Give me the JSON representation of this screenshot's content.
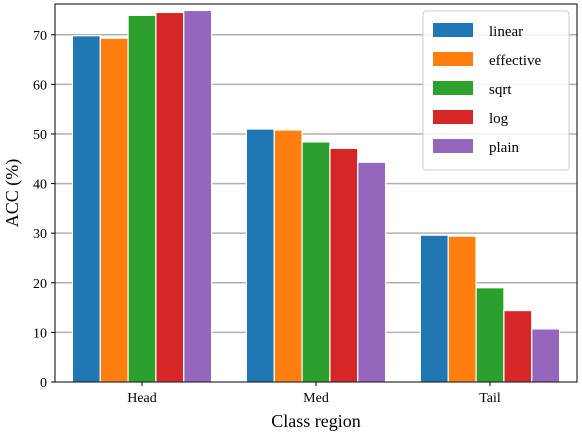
{
  "chart_data": {
    "type": "bar",
    "categories": [
      "Head",
      "Med",
      "Tail"
    ],
    "series": [
      {
        "name": "linear",
        "color": "#1f77b4",
        "values": [
          69.8,
          51.0,
          29.6
        ]
      },
      {
        "name": "effective",
        "color": "#ff7f0e",
        "values": [
          69.3,
          50.8,
          29.4
        ]
      },
      {
        "name": "sqrt",
        "color": "#2ca02c",
        "values": [
          73.9,
          48.4,
          19.0
        ]
      },
      {
        "name": "log",
        "color": "#d62728",
        "values": [
          74.5,
          47.1,
          14.4
        ]
      },
      {
        "name": "plain",
        "color": "#9467bd",
        "values": [
          74.9,
          44.3,
          10.7
        ]
      }
    ],
    "xlabel": "Class region",
    "ylabel": "ACC (%)",
    "ylim": [
      0,
      76.2
    ],
    "yticks": [
      0,
      10,
      20,
      30,
      40,
      50,
      60,
      70
    ],
    "grid": "horizontal",
    "legend": "top-right"
  }
}
